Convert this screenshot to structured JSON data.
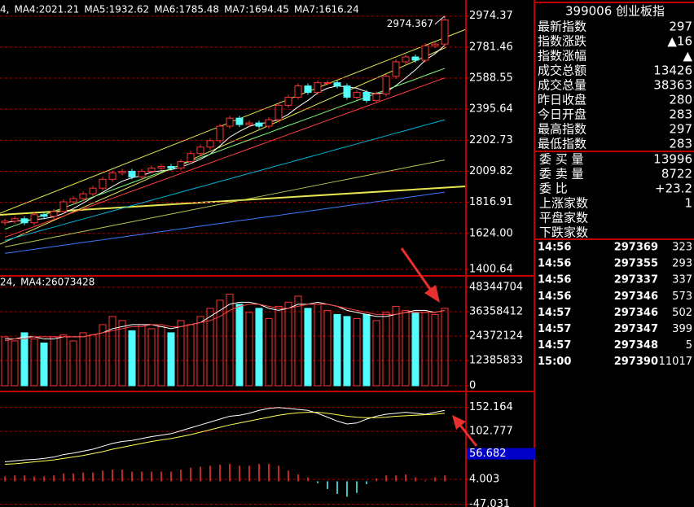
{
  "chart_data": [
    {
      "type": "candlestick",
      "open": [
        1690,
        1700,
        1715,
        1690,
        1740,
        1730,
        1760,
        1820,
        1840,
        1870,
        1905,
        1960,
        2000,
        2010,
        1975,
        2010,
        2030,
        2040,
        2030,
        2070,
        2120,
        2160,
        2200,
        2290,
        2340,
        2300,
        2310,
        2290,
        2330,
        2420,
        2470,
        2540,
        2500,
        2560,
        2560,
        2540,
        2470,
        2500,
        2450,
        2490,
        2600,
        2690,
        2720,
        2700,
        2790,
        2800
      ],
      "high": [
        1715,
        1730,
        1730,
        1755,
        1755,
        1775,
        1835,
        1855,
        1885,
        1920,
        1975,
        2015,
        2025,
        2025,
        2025,
        2045,
        2055,
        2055,
        2085,
        2135,
        2175,
        2215,
        2305,
        2355,
        2355,
        2325,
        2325,
        2345,
        2435,
        2485,
        2555,
        2555,
        2575,
        2575,
        2575,
        2555,
        2515,
        2515,
        2505,
        2615,
        2705,
        2735,
        2735,
        2805,
        2815,
        2974.367
      ],
      "low": [
        1675,
        1685,
        1675,
        1675,
        1715,
        1715,
        1745,
        1805,
        1825,
        1855,
        1890,
        1945,
        1985,
        1960,
        1960,
        1995,
        2015,
        2015,
        2015,
        2055,
        2105,
        2145,
        2185,
        2275,
        2285,
        2285,
        2275,
        2275,
        2315,
        2405,
        2455,
        2485,
        2485,
        2545,
        2525,
        2455,
        2455,
        2435,
        2435,
        2475,
        2585,
        2675,
        2685,
        2685,
        2775,
        2785
      ],
      "close": [
        1700,
        1715,
        1690,
        1740,
        1730,
        1760,
        1820,
        1840,
        1870,
        1905,
        1960,
        2000,
        2010,
        1975,
        2010,
        2030,
        2040,
        2030,
        2070,
        2120,
        2160,
        2200,
        2290,
        2340,
        2300,
        2310,
        2290,
        2330,
        2420,
        2470,
        2540,
        2500,
        2560,
        2560,
        2540,
        2470,
        2500,
        2450,
        2490,
        2600,
        2690,
        2720,
        2700,
        2790,
        2800,
        2950
      ],
      "up_color": "#ff3232",
      "down_color": "#54fcfc",
      "annotation": "2974.367",
      "series": [
        {
          "name": "4,",
          "color": "#ffffff",
          "values": [
            1690,
            1700,
            1705,
            1710,
            1715,
            1727,
            1748,
            1778,
            1812,
            1847,
            1879,
            1915,
            1948,
            1970,
            1982,
            2005,
            2013,
            2019,
            2036,
            2058,
            2084,
            2116,
            2168,
            2222,
            2258,
            2289,
            2306,
            2314,
            2330,
            2364,
            2410,
            2450,
            2497,
            2526,
            2540,
            2534,
            2526,
            2504,
            2490,
            2502,
            2542,
            2590,
            2640,
            2700,
            2740,
            2792
          ]
        },
        {
          "name": "MA4:2021.21",
          "color": "#7cfc7c",
          "values": [
            1650,
            1672,
            1694,
            1717,
            1739,
            1761,
            1783,
            1805,
            1828,
            1850,
            1872,
            1894,
            1916,
            1939,
            1961,
            1983,
            2005,
            2027,
            2050,
            2072,
            2094,
            2116,
            2138,
            2161,
            2183,
            2205,
            2227,
            2249,
            2272,
            2294,
            2316,
            2338,
            2360,
            2383,
            2405,
            2427,
            2449,
            2471,
            2494,
            2516,
            2538,
            2560,
            2582,
            2605,
            2627,
            2649
          ]
        },
        {
          "name": "MA5:1932.62",
          "color": "#ff4040",
          "values": [
            1600,
            1622,
            1644,
            1666,
            1688,
            1710,
            1732,
            1754,
            1776,
            1798,
            1820,
            1842,
            1864,
            1886,
            1908,
            1930,
            1952,
            1974,
            1996,
            2018,
            2040,
            2062,
            2084,
            2106,
            2128,
            2150,
            2172,
            2194,
            2216,
            2238,
            2260,
            2282,
            2304,
            2326,
            2348,
            2370,
            2392,
            2414,
            2436,
            2458,
            2480,
            2502,
            2524,
            2546,
            2568,
            2590
          ]
        },
        {
          "name": "MA6:1785.48",
          "color": "#00b4dc",
          "values": [
            1580,
            1597,
            1613,
            1630,
            1647,
            1663,
            1680,
            1697,
            1713,
            1730,
            1747,
            1763,
            1780,
            1797,
            1813,
            1830,
            1847,
            1863,
            1880,
            1897,
            1913,
            1930,
            1947,
            1963,
            1980,
            1997,
            2013,
            2030,
            2047,
            2063,
            2080,
            2097,
            2113,
            2130,
            2147,
            2163,
            2180,
            2197,
            2213,
            2230,
            2247,
            2263,
            2280,
            2297,
            2313,
            2330
          ]
        },
        {
          "name": "MA7:1694.45",
          "color": "#b4c850",
          "values": [
            1540,
            1552,
            1564,
            1576,
            1588,
            1600,
            1612,
            1624,
            1636,
            1648,
            1660,
            1672,
            1684,
            1696,
            1708,
            1720,
            1732,
            1744,
            1756,
            1768,
            1780,
            1792,
            1804,
            1816,
            1828,
            1840,
            1852,
            1864,
            1876,
            1888,
            1900,
            1912,
            1924,
            1936,
            1948,
            1960,
            1972,
            1984,
            1996,
            2008,
            2020,
            2032,
            2044,
            2056,
            2068,
            2080
          ]
        },
        {
          "name": "MA7:1616.24",
          "color": "#3c78ff",
          "values": [
            1500,
            1508,
            1517,
            1525,
            1534,
            1542,
            1551,
            1559,
            1568,
            1576,
            1584,
            1593,
            1601,
            1610,
            1618,
            1627,
            1635,
            1644,
            1652,
            1660,
            1669,
            1677,
            1686,
            1694,
            1703,
            1711,
            1720,
            1728,
            1736,
            1745,
            1753,
            1762,
            1770,
            1779,
            1787,
            1796,
            1804,
            1812,
            1821,
            1829,
            1838,
            1846,
            1855,
            1863,
            1872,
            1880
          ]
        }
      ],
      "ylim": [
        1365,
        3074
      ],
      "yticks": [
        2974.37,
        2781.46,
        2588.55,
        2395.64,
        2202.73,
        2009.82,
        1816.91,
        {
          "value": 1624,
          "label": "1624.00"
        },
        1400.64
      ],
      "grid": true
    },
    {
      "type": "bar",
      "values": [
        24000000,
        22000000,
        26000000,
        23000000,
        21000000,
        24000000,
        25000000,
        22000000,
        26000000,
        25000000,
        30000000,
        34000000,
        32000000,
        27000000,
        30000000,
        28000000,
        29000000,
        26000000,
        32000000,
        30000000,
        34000000,
        38000000,
        42000000,
        45000000,
        40000000,
        36000000,
        38000000,
        33000000,
        39000000,
        41000000,
        44000000,
        38000000,
        40000000,
        37000000,
        35000000,
        34000000,
        33000000,
        35000000,
        32000000,
        36000000,
        39000000,
        37000000,
        36000000,
        36000000,
        35000000,
        38000000
      ],
      "up_color": "#ff3232",
      "down_color": "#54fcfc",
      "series": [
        {
          "name": "24,",
          "color": "#ffffff",
          "values": [
            23000000,
            23000000,
            24000000,
            24000000,
            23000000,
            23000000,
            24000000,
            24000000,
            24000000,
            25000000,
            26000000,
            28000000,
            29000000,
            30000000,
            30000000,
            30000000,
            29000000,
            28000000,
            29000000,
            30000000,
            31000000,
            34000000,
            37000000,
            40000000,
            41000000,
            41000000,
            40000000,
            38000000,
            37000000,
            38000000,
            40000000,
            40000000,
            41000000,
            40000000,
            39000000,
            37000000,
            36000000,
            35000000,
            34000000,
            34000000,
            35000000,
            36000000,
            37000000,
            37000000,
            36000000,
            37000000
          ]
        },
        {
          "name": "MA4:26073428",
          "color": "#ff4040",
          "values": [
            22000000,
            23000000,
            23000000,
            24000000,
            24000000,
            24000000,
            24000000,
            24000000,
            24000000,
            25000000,
            26000000,
            27000000,
            28000000,
            29000000,
            29000000,
            30000000,
            30000000,
            29000000,
            29000000,
            30000000,
            31000000,
            32000000,
            34000000,
            37000000,
            39000000,
            40000000,
            40000000,
            39000000,
            38000000,
            38000000,
            39000000,
            40000000,
            40000000,
            40000000,
            39000000,
            38000000,
            37000000,
            36000000,
            35000000,
            35000000,
            35000000,
            36000000,
            36000000,
            36000000,
            36000000,
            37000000
          ]
        }
      ],
      "ylim": [
        0,
        53538763
      ],
      "yticks": [
        48344704,
        36358412,
        24372124,
        12385833,
        0
      ],
      "grid": true
    },
    {
      "type": "line",
      "series": [
        {
          "color": "#ffffff",
          "values": [
            40,
            42,
            44,
            45,
            47,
            50,
            55,
            58,
            62,
            66,
            72,
            78,
            82,
            84,
            88,
            92,
            95,
            98,
            104,
            110,
            116,
            122,
            128,
            134,
            136,
            140,
            146,
            150,
            152,
            150,
            148,
            146,
            140,
            132,
            124,
            118,
            120,
            128,
            134,
            138,
            140,
            142,
            140,
            138,
            142,
            146
          ]
        },
        {
          "color": "#ffff50",
          "values": [
            35,
            36,
            38,
            40,
            42,
            44,
            47,
            50,
            53,
            57,
            61,
            66,
            70,
            74,
            78,
            82,
            85,
            88,
            92,
            96,
            101,
            106,
            111,
            116,
            120,
            124,
            128,
            132,
            136,
            139,
            141,
            142,
            142,
            140,
            137,
            134,
            132,
            131,
            131,
            132,
            134,
            135,
            136,
            137,
            138,
            140
          ]
        }
      ],
      "histogram": [
        10,
        12,
        12,
        10,
        10,
        12,
        16,
        16,
        18,
        18,
        22,
        24,
        24,
        20,
        20,
        20,
        20,
        20,
        24,
        28,
        30,
        32,
        34,
        36,
        32,
        32,
        36,
        36,
        32,
        22,
        14,
        8,
        -4,
        -16,
        -26,
        -32,
        -24,
        -6,
        6,
        12,
        12,
        14,
        8,
        2,
        8,
        12
      ],
      "up_color": "#ff3232",
      "down_color": "#54fcfc",
      "cursor_value": 56.682,
      "ylim": [
        -53,
        180
      ],
      "yticks": [
        152.164,
        102.777,
        4.003,
        -47.031
      ],
      "grid": true
    }
  ],
  "quote_panel": {
    "title": "399006 创业板指",
    "stats": [
      {
        "label": "最新指数",
        "value": "297",
        "color": "#ff3232"
      },
      {
        "label": "指数涨跌",
        "value": "▲16",
        "color": "#ff3232"
      },
      {
        "label": "指数涨幅",
        "value": "▲",
        "color": "#ff3232"
      },
      {
        "label": "成交总额",
        "value": "13426",
        "color": "#ffffff"
      },
      {
        "label": "成交总量",
        "value": "38363",
        "color": "#ffffff"
      },
      {
        "label": "昨日收盘",
        "value": "280",
        "color": "#ffffff"
      },
      {
        "label": "今日开盘",
        "value": "283",
        "color": "#ff3232"
      },
      {
        "label": "最高指数",
        "value": "297",
        "color": "#ff3232"
      },
      {
        "label": "最低指数",
        "value": "283",
        "color": "#ff3232"
      }
    ],
    "orders": [
      {
        "label": "委 买 量",
        "value": "13996",
        "color": "#ffffff"
      },
      {
        "label": "委 卖 量",
        "value": "8722",
        "color": "#ffffff"
      },
      {
        "label": "委   比",
        "value": "+23.2",
        "color": "#ff3232"
      },
      {
        "label": "上涨家数",
        "value": "1",
        "color": "#ffffff"
      },
      {
        "label": "平盘家数"
      },
      {
        "label": "下跌家数"
      }
    ],
    "ticks": [
      {
        "time": "14:56",
        "price": "297369",
        "volume": "323"
      },
      {
        "time": "14:56",
        "price": "297355",
        "volume": "293"
      },
      {
        "time": "14:56",
        "price": "297337",
        "volume": "337"
      },
      {
        "time": "14:56",
        "price": "297346",
        "volume": "573"
      },
      {
        "time": "14:57",
        "price": "297346",
        "volume": "502"
      },
      {
        "time": "14:57",
        "price": "297347",
        "volume": "399"
      },
      {
        "time": "14:57",
        "price": "297348",
        "volume": "5"
      },
      {
        "time": "15:00",
        "price": "297390",
        "volume": "11017"
      }
    ],
    "tick_price_color": "#ff3232"
  }
}
